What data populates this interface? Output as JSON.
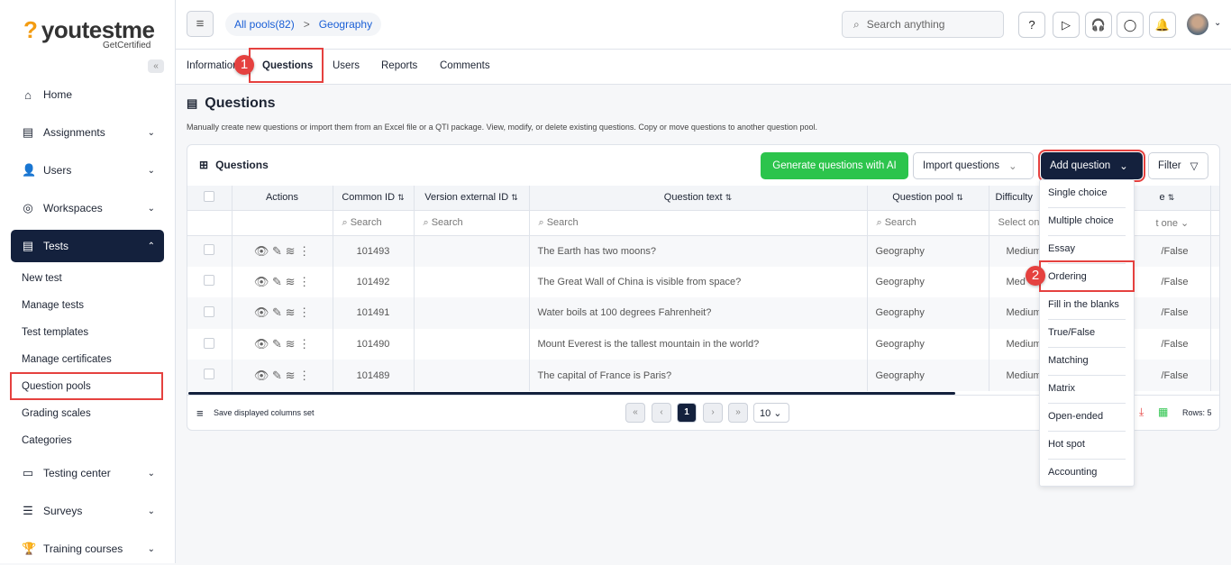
{
  "brand": {
    "name": "youtestme",
    "tagline": "GetCertified"
  },
  "sidebar": {
    "items": [
      {
        "label": "Home",
        "icon": "home-icon"
      },
      {
        "label": "Assignments",
        "icon": "document-icon"
      },
      {
        "label": "Users",
        "icon": "users-icon"
      },
      {
        "label": "Workspaces",
        "icon": "globe-icon"
      },
      {
        "label": "Tests",
        "icon": "test-icon"
      },
      {
        "label": "Testing center",
        "icon": "testing-center-icon"
      },
      {
        "label": "Surveys",
        "icon": "list-icon"
      },
      {
        "label": "Training courses",
        "icon": "trophy-icon"
      }
    ],
    "sub_items": [
      "New test",
      "Manage tests",
      "Test templates",
      "Manage certificates",
      "Question pools",
      "Grading scales",
      "Categories"
    ]
  },
  "header": {
    "breadcrumb": [
      "All pools(82)",
      "Geography"
    ],
    "search_placeholder": "Search anything"
  },
  "tabs": [
    "Information",
    "Questions",
    "Users",
    "Reports",
    "Comments"
  ],
  "annotations": [
    "1",
    "2"
  ],
  "page": {
    "title": "Questions",
    "description": "Manually create new questions or import them from an Excel file or a QTI package. View, modify, or delete existing questions. Copy or move questions to another question pool."
  },
  "panel": {
    "title": "Questions",
    "generate_ai": "Generate questions with AI",
    "import": "Import questions",
    "add": "Add question",
    "filter": "Filter"
  },
  "table": {
    "columns": [
      "",
      "Actions",
      "Common ID",
      "Version external ID",
      "Question text",
      "Question pool",
      "Difficulty",
      "Type"
    ],
    "column_headers_visible": {
      "type": "e"
    },
    "search_placeholder": "Search",
    "select_placeholder": "Select on",
    "select_placeholder2": "t one",
    "rows": [
      {
        "id": "101493",
        "text": "The Earth has two moons?",
        "pool": "Geography",
        "difficulty": "Medium",
        "type": "/False"
      },
      {
        "id": "101492",
        "text": "The Great Wall of China is visible from space?",
        "pool": "Geography",
        "difficulty": "Med",
        "type": "/False"
      },
      {
        "id": "101491",
        "text": "Water boils at 100 degrees Fahrenheit?",
        "pool": "Geography",
        "difficulty": "Medium",
        "type": "/False"
      },
      {
        "id": "101490",
        "text": "Mount Everest is the tallest mountain in the world?",
        "pool": "Geography",
        "difficulty": "Medium",
        "type": "/False"
      },
      {
        "id": "101489",
        "text": "The capital of France is Paris?",
        "pool": "Geography",
        "difficulty": "Medium",
        "type": "/False"
      }
    ]
  },
  "footer": {
    "save_columns": "Save displayed columns set",
    "current_page": "1",
    "page_size": "10",
    "rows": "Rows: 5"
  },
  "add_menu": [
    "Single choice",
    "Multiple choice",
    "Essay",
    "Ordering",
    "Fill in the blanks",
    "True/False",
    "Matching",
    "Matrix",
    "Open-ended",
    "Hot spot",
    "Accounting"
  ],
  "colors": {
    "primary": "#14213d",
    "ai": "#2cc44c",
    "highlight": "#e5413f",
    "link": "#1a5fd6"
  }
}
